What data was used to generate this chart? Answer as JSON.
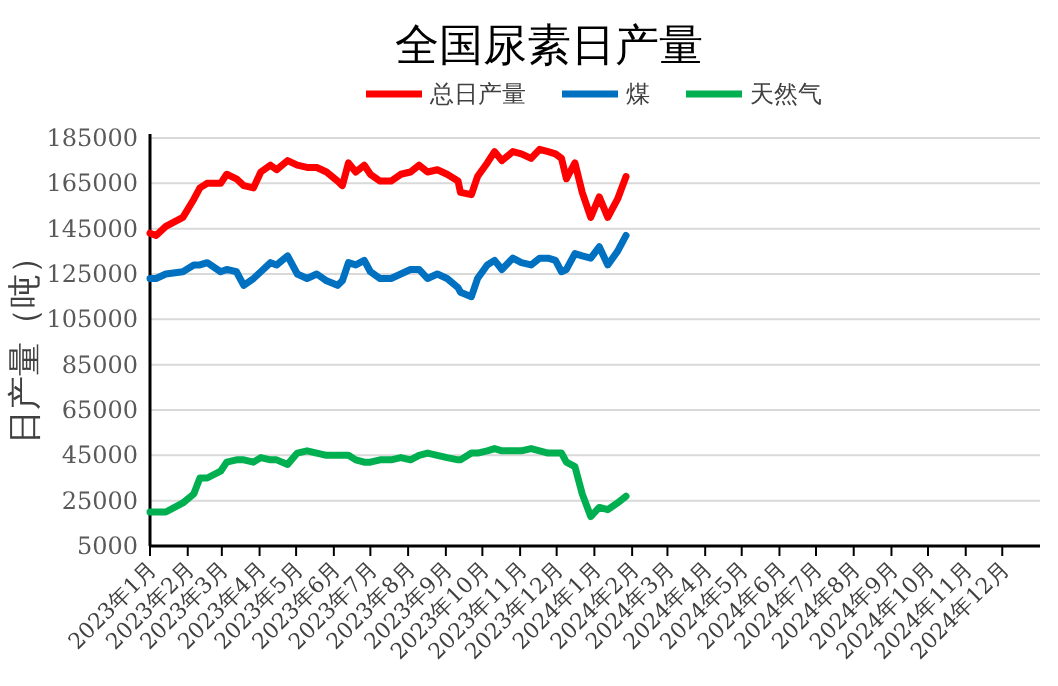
{
  "chart_data": {
    "type": "line",
    "title": "全国尿素日产量",
    "ylabel": "日产量（吨）",
    "x": [
      "2023-01-01",
      "2023-01-06",
      "2023-01-14",
      "2023-01-28",
      "2023-02-06",
      "2023-02-11",
      "2023-02-17",
      "2023-02-28",
      "2023-03-05",
      "2023-03-13",
      "2023-03-19",
      "2023-03-27",
      "2023-04-02",
      "2023-04-10",
      "2023-04-15",
      "2023-04-24",
      "2023-05-02",
      "2023-05-10",
      "2023-05-18",
      "2023-05-26",
      "2023-06-04",
      "2023-06-08",
      "2023-06-13",
      "2023-06-19",
      "2023-06-26",
      "2023-07-01",
      "2023-07-09",
      "2023-07-18",
      "2023-07-26",
      "2023-08-03",
      "2023-08-10",
      "2023-08-17",
      "2023-08-25",
      "2023-09-02",
      "2023-09-11",
      "2023-09-13",
      "2023-09-22",
      "2023-09-27",
      "2023-10-05",
      "2023-10-11",
      "2023-10-17",
      "2023-10-26",
      "2023-11-02",
      "2023-11-10",
      "2023-11-17",
      "2023-11-24",
      "2023-11-30",
      "2023-12-05",
      "2023-12-09",
      "2023-12-16",
      "2023-12-22",
      "2023-12-29",
      "2024-01-05",
      "2024-01-12",
      "2024-01-20",
      "2024-01-27"
    ],
    "series": [
      {
        "name": "总日产量",
        "color": "#ff0000",
        "values": [
          143000,
          142000,
          146000,
          150000,
          158000,
          163000,
          165000,
          165000,
          169000,
          167000,
          164000,
          163000,
          170000,
          173000,
          171000,
          175000,
          173000,
          172000,
          172000,
          170000,
          166000,
          164000,
          174000,
          170000,
          173000,
          169000,
          166000,
          166000,
          169000,
          170000,
          173000,
          170000,
          171000,
          169000,
          166000,
          161000,
          160000,
          168000,
          174000,
          179000,
          175000,
          179000,
          178000,
          176000,
          180000,
          179000,
          178000,
          176000,
          167000,
          174000,
          161000,
          150000,
          159000,
          150000,
          158000,
          168000
        ]
      },
      {
        "name": "煤",
        "color": "#0070c0",
        "values": [
          123000,
          123000,
          125000,
          126000,
          129000,
          129000,
          130000,
          126000,
          127000,
          126000,
          120000,
          123000,
          126000,
          130000,
          129000,
          133000,
          125000,
          123000,
          125000,
          122000,
          120000,
          122000,
          130000,
          129000,
          131000,
          126000,
          123000,
          123000,
          125000,
          127000,
          127000,
          123000,
          125000,
          123000,
          119000,
          117000,
          115000,
          123000,
          129000,
          131000,
          127000,
          132000,
          130000,
          129000,
          132000,
          132000,
          131000,
          126000,
          127000,
          134000,
          133000,
          132000,
          137000,
          129000,
          135000,
          142000
        ]
      },
      {
        "name": "天然气",
        "color": "#00b050",
        "values": [
          20000,
          20000,
          20000,
          24000,
          28000,
          35000,
          35000,
          38000,
          42000,
          43000,
          43000,
          42000,
          44000,
          43000,
          43000,
          41000,
          46000,
          47000,
          46000,
          45000,
          45000,
          45000,
          45000,
          43000,
          42000,
          42000,
          43000,
          43000,
          44000,
          43000,
          45000,
          46000,
          45000,
          44000,
          43000,
          43000,
          46000,
          46000,
          47000,
          48000,
          47000,
          47000,
          47000,
          48000,
          47000,
          46000,
          46000,
          46000,
          42000,
          40000,
          28000,
          18000,
          22000,
          21000,
          24000,
          27000
        ]
      }
    ],
    "xlim": [
      "2023-01-01",
      "2025-01-01"
    ],
    "xticks": [
      {
        "value": "2023-01",
        "label": "2023年1月"
      },
      {
        "value": "2023-02",
        "label": "2023年2月"
      },
      {
        "value": "2023-03",
        "label": "2023年3月"
      },
      {
        "value": "2023-04",
        "label": "2023年4月"
      },
      {
        "value": "2023-05",
        "label": "2023年5月"
      },
      {
        "value": "2023-06",
        "label": "2023年6月"
      },
      {
        "value": "2023-07",
        "label": "2023年7月"
      },
      {
        "value": "2023-08",
        "label": "2023年8月"
      },
      {
        "value": "2023-09",
        "label": "2023年9月"
      },
      {
        "value": "2023-10",
        "label": "2023年10月"
      },
      {
        "value": "2023-11",
        "label": "2023年11月"
      },
      {
        "value": "2023-12",
        "label": "2023年12月"
      },
      {
        "value": "2024-01",
        "label": "2024年1月"
      },
      {
        "value": "2024-02",
        "label": "2024年2月"
      },
      {
        "value": "2024-03",
        "label": "2024年3月"
      },
      {
        "value": "2024-04",
        "label": "2024年4月"
      },
      {
        "value": "2024-05",
        "label": "2024年5月"
      },
      {
        "value": "2024-06",
        "label": "2024年6月"
      },
      {
        "value": "2024-07",
        "label": "2024年7月"
      },
      {
        "value": "2024-08",
        "label": "2024年8月"
      },
      {
        "value": "2024-09",
        "label": "2024年9月"
      },
      {
        "value": "2024-10",
        "label": "2024年10月"
      },
      {
        "value": "2024-11",
        "label": "2024年11月"
      },
      {
        "value": "2024-12",
        "label": "2024年12月"
      }
    ],
    "ylim": [
      5000,
      185000
    ],
    "yticks": [
      5000,
      25000,
      45000,
      65000,
      85000,
      105000,
      125000,
      145000,
      165000,
      185000
    ],
    "grid": "y",
    "legend": "top",
    "marker": "none",
    "line_style": "solid"
  }
}
